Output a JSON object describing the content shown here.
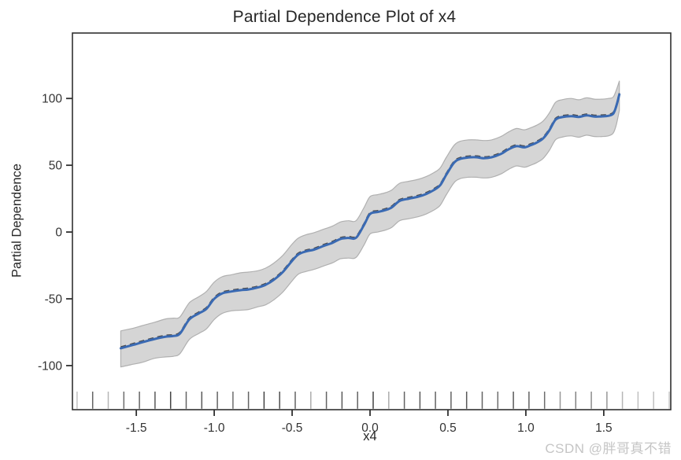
{
  "watermark": {
    "text": "CSDN @胖哥真不错"
  },
  "colors": {
    "line": "#3a6ab3",
    "dashed_overlay": "#4d4d4d",
    "band_fill": "#d5d5d5",
    "band_edge": "#b0b0b0",
    "axis": "#303030",
    "rug": "#2f2f2f",
    "text": "#262626",
    "watermark": "#c5c5c5"
  },
  "chart_data": {
    "type": "line",
    "title": "Partial Dependence Plot of x4",
    "xlabel": "x4",
    "ylabel": "Partial Dependence",
    "grid": false,
    "legend": "none",
    "xlim": [
      -1.91,
      1.93
    ],
    "ylim": [
      -133,
      149
    ],
    "x_ticks": [
      -1.5,
      -1.0,
      -0.5,
      0.0,
      0.5,
      1.0,
      1.5
    ],
    "x_tick_labels": [
      "-1.5",
      "-1.0",
      "-0.5",
      "0.0",
      "0.5",
      "1.0",
      "1.5"
    ],
    "y_ticks": [
      -100,
      -50,
      0,
      50,
      100
    ],
    "y_tick_labels": [
      "-100",
      "-50",
      "0",
      "50",
      "100"
    ],
    "series": [
      {
        "name": "partial-dependence",
        "style": "solid",
        "x": [
          -1.6,
          -1.52,
          -1.46,
          -1.38,
          -1.31,
          -1.26,
          -1.22,
          -1.16,
          -1.1,
          -1.05,
          -1.0,
          -0.95,
          -0.89,
          -0.83,
          -0.78,
          -0.72,
          -0.67,
          -0.62,
          -0.56,
          -0.5,
          -0.46,
          -0.41,
          -0.36,
          -0.3,
          -0.24,
          -0.19,
          -0.14,
          -0.09,
          -0.04,
          0.0,
          0.05,
          0.1,
          0.14,
          0.19,
          0.25,
          0.31,
          0.36,
          0.41,
          0.45,
          0.49,
          0.54,
          0.58,
          0.63,
          0.68,
          0.73,
          0.78,
          0.84,
          0.89,
          0.94,
          0.99,
          1.03,
          1.07,
          1.11,
          1.15,
          1.19,
          1.23,
          1.29,
          1.34,
          1.39,
          1.44,
          1.49,
          1.53,
          1.56,
          1.58,
          1.6
        ],
        "y": [
          -87,
          -84.5,
          -82.5,
          -80,
          -78.3,
          -77.8,
          -76,
          -65.5,
          -61,
          -57.5,
          -50,
          -46,
          -44.5,
          -43.5,
          -43,
          -41.5,
          -39.5,
          -36,
          -30,
          -21.5,
          -16.8,
          -14.5,
          -13.2,
          -10.5,
          -8,
          -5.2,
          -4.4,
          -4.3,
          5,
          13.5,
          15,
          16.5,
          18.5,
          23.3,
          25,
          26.5,
          28.5,
          31.5,
          35,
          43,
          52,
          54.8,
          55.8,
          56,
          55.3,
          56,
          58.5,
          62,
          64.3,
          63.4,
          65,
          67,
          70,
          76,
          84,
          86,
          86.8,
          86.2,
          87.3,
          86.4,
          86.6,
          87,
          88.5,
          94,
          103
        ]
      }
    ],
    "dashed_overlay": {
      "follows_main_series": true,
      "dash": [
        7,
        5
      ]
    },
    "band": {
      "upper": [
        -74,
        -72,
        -70,
        -67.5,
        -65,
        -64.5,
        -63.5,
        -53,
        -48.5,
        -44.5,
        -37.5,
        -33.5,
        -32,
        -30.5,
        -30,
        -29,
        -27,
        -23.5,
        -17.5,
        -9,
        -4.5,
        -2,
        -0.5,
        2,
        4.5,
        7.5,
        8.5,
        8.5,
        18,
        26.5,
        28,
        29.5,
        31.5,
        36.5,
        38,
        39.5,
        41.5,
        44.5,
        48,
        56,
        65,
        68,
        69,
        69,
        68.5,
        69,
        71.5,
        75,
        77.5,
        76.5,
        78,
        80,
        83,
        89,
        97,
        99,
        100,
        99,
        100.5,
        99.5,
        99.5,
        100,
        101,
        106,
        113
      ],
      "lower": [
        -101,
        -99,
        -97.5,
        -94.5,
        -93.5,
        -93,
        -91,
        -80.5,
        -76,
        -72.5,
        -65.5,
        -61,
        -59,
        -58.5,
        -58,
        -56,
        -54.5,
        -51,
        -45,
        -36.5,
        -31.5,
        -29.5,
        -28,
        -25.5,
        -23,
        -20,
        -19.5,
        -19,
        -10,
        -1.5,
        0,
        1.5,
        3.5,
        8.5,
        10,
        11.5,
        13.5,
        16.5,
        20,
        28,
        37,
        40,
        41,
        41,
        40.5,
        41,
        43.5,
        47,
        49.5,
        48.5,
        50,
        52,
        55,
        61,
        69,
        71,
        72,
        71,
        72.5,
        71.5,
        71.5,
        72,
        74,
        80,
        91
      ]
    },
    "rug": {
      "x": [
        -1.88,
        -1.78,
        -1.68,
        -1.58,
        -1.48,
        -1.38,
        -1.28,
        -1.18,
        -1.08,
        -0.98,
        -0.88,
        -0.78,
        -0.68,
        -0.58,
        -0.48,
        -0.38,
        -0.28,
        -0.18,
        -0.08,
        0.02,
        0.12,
        0.22,
        0.32,
        0.42,
        0.52,
        0.62,
        0.72,
        0.82,
        0.92,
        1.02,
        1.12,
        1.22,
        1.32,
        1.42,
        1.52,
        1.62,
        1.72,
        1.82,
        1.92
      ],
      "shades": [
        0.3,
        0.75,
        0.35,
        0.7,
        0.75,
        0.8,
        0.9,
        0.75,
        0.8,
        0.75,
        0.7,
        0.75,
        0.9,
        0.85,
        0.75,
        0.4,
        0.75,
        0.8,
        0.75,
        0.9,
        0.4,
        0.75,
        0.8,
        0.75,
        0.75,
        0.8,
        0.75,
        0.7,
        0.8,
        0.75,
        0.7,
        0.5,
        0.6,
        0.55,
        0.5,
        0.35,
        0.3,
        0.3,
        0.25
      ]
    }
  }
}
